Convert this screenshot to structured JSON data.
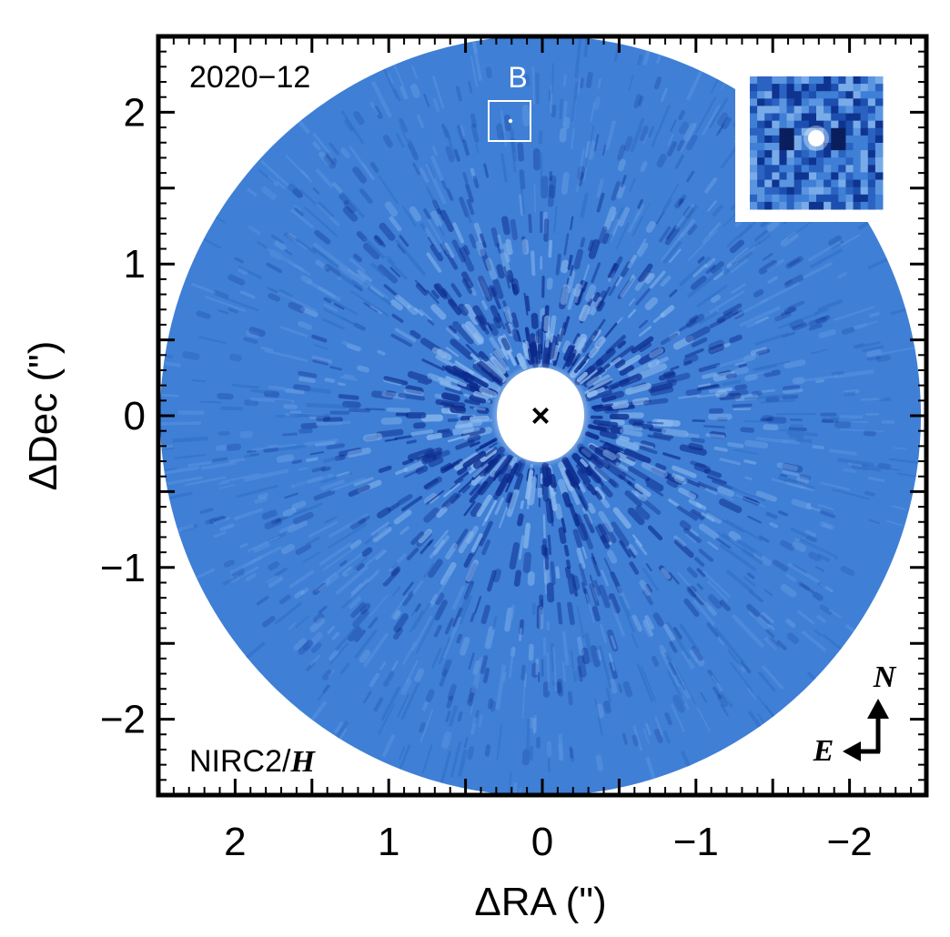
{
  "figure": {
    "epoch_label": "2020−12",
    "instrument_label": "NIRC2/",
    "filter_label": "H",
    "companion_label": "B",
    "xlabel": "ΔRA (\")",
    "ylabel": "ΔDec (\")",
    "compass": {
      "north": "N",
      "east": "E"
    },
    "colors": {
      "background_blue": "#3f7fd6",
      "dark_speckle": "#0b2a8c",
      "light_speckle": "#8fbcf0",
      "frame": "#000000"
    },
    "x_ticks": [
      {
        "value": 2,
        "label": "2"
      },
      {
        "value": 1,
        "label": "1"
      },
      {
        "value": 0,
        "label": "0"
      },
      {
        "value": -1,
        "label": "−1"
      },
      {
        "value": -2,
        "label": "−2"
      }
    ],
    "y_ticks": [
      {
        "value": 2,
        "label": "2"
      },
      {
        "value": 1,
        "label": "1"
      },
      {
        "value": 0,
        "label": "0"
      },
      {
        "value": -1,
        "label": "−1"
      },
      {
        "value": -2,
        "label": "−2"
      }
    ],
    "xlim": [
      2.5,
      -2.5
    ],
    "ylim": [
      -2.5,
      2.5
    ],
    "star_marker": "×",
    "companion_position": {
      "ra": 0.1,
      "dec": 1.95
    }
  }
}
